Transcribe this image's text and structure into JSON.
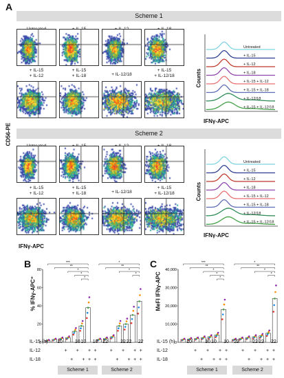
{
  "figure": {
    "panel_a": "A",
    "panel_b": "B",
    "panel_c": "C",
    "scheme1": "Scheme 1",
    "scheme2": "Scheme 2",
    "y_axis_flow": "CD56-PE",
    "x_axis_flow": "IFNγ-APC",
    "hist_y": "Counts",
    "hist_x": "IFNγ-APC",
    "flow_labels_row1": [
      "Untreated",
      "+ IL-15",
      "+ IL-12",
      "+ IL-18"
    ],
    "flow_labels_row2": [
      "+ IL-15\n+ IL-12",
      "+ IL-15\n+ IL-18",
      "+ IL-12/18",
      "+ IL-15\n+ IL-12/18"
    ],
    "hist_legend": [
      "Untreated",
      "+ IL-15",
      "+ IL-12",
      "+ IL-18",
      "+ IL-15 + IL-12",
      "+ IL-15 + IL-18",
      "+ IL-12/18",
      "+ IL-15 + IL-12/18"
    ],
    "hist_colors": [
      "#7fd3e0",
      "#2c3e8f",
      "#c0392b",
      "#8e44ad",
      "#e87070",
      "#5b6bb5",
      "#2e8b57",
      "#43a047"
    ],
    "bar_b_ylabel": "% IFNγ-APC⁺",
    "bar_c_ylabel": "MeFI IFNγ-APC",
    "table_row_labels": [
      "IL-15 (h)",
      "IL-12",
      "IL-18"
    ],
    "table_il15": [
      "10",
      "",
      "",
      "10",
      "10",
      "",
      "10",
      "22",
      "",
      "",
      "22",
      "22",
      "",
      "22"
    ],
    "table_il12": [
      "",
      "+",
      "",
      "+",
      "",
      "+",
      "+",
      "",
      "+",
      "",
      "+",
      "",
      "+",
      "+"
    ],
    "table_il18": [
      "",
      "",
      "+",
      "",
      "+",
      "+",
      "+",
      "",
      "",
      "+",
      "",
      "+",
      "+",
      "+"
    ],
    "bar_b_yticks": [
      "0",
      "20",
      "40",
      "60",
      "80"
    ],
    "bar_c_yticks": [
      "0",
      "10,000",
      "20,000",
      "30,000",
      "40,000"
    ],
    "sig_marks": [
      "*",
      "**",
      "***"
    ]
  },
  "chart_data": [
    {
      "type": "bar",
      "ylabel": "% IFNγ-APC⁺",
      "ylim": [
        0,
        80
      ],
      "values": [
        2,
        3,
        4,
        5,
        12,
        18,
        38,
        3,
        4,
        6,
        18,
        20,
        30,
        45
      ]
    },
    {
      "type": "bar",
      "ylabel": "MeFI IFNγ-APC",
      "ylim": [
        0,
        40000
      ],
      "values": [
        1500,
        1800,
        2000,
        2500,
        3000,
        4000,
        18000,
        1500,
        2000,
        2500,
        3000,
        3500,
        5000,
        24000
      ]
    }
  ]
}
